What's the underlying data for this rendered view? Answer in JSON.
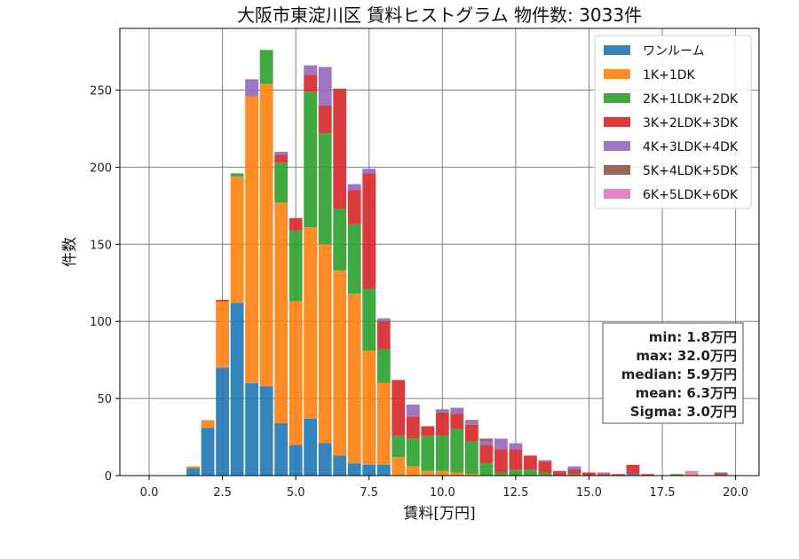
{
  "chart_data": {
    "type": "bar",
    "stacked": true,
    "title": "大阪市東淀川区 賃料ヒストグラム 物件数: 3033件",
    "xlabel": "賃料[万円]",
    "ylabel": "件数",
    "xlim": [
      -1.0,
      20.8
    ],
    "ylim": [
      0,
      290
    ],
    "xticks": [
      0.0,
      2.5,
      5.0,
      7.5,
      10.0,
      12.5,
      15.0,
      17.5,
      20.0
    ],
    "xtick_labels": [
      "0.0",
      "2.5",
      "5.0",
      "7.5",
      "10.0",
      "12.5",
      "15.0",
      "17.5",
      "20.0"
    ],
    "yticks": [
      0,
      50,
      100,
      150,
      200,
      250
    ],
    "ytick_labels": [
      "0",
      "50",
      "100",
      "150",
      "200",
      "250"
    ],
    "grid": true,
    "legend_position": "top-right",
    "bin_width": 0.5,
    "bins": [
      1.5,
      2.0,
      2.5,
      3.0,
      3.5,
      4.0,
      4.5,
      5.0,
      5.5,
      6.0,
      6.5,
      7.0,
      7.5,
      8.0,
      8.5,
      9.0,
      9.5,
      10.0,
      10.5,
      11.0,
      11.5,
      12.0,
      12.5,
      13.0,
      13.5,
      14.0,
      14.5,
      15.0,
      15.5,
      16.0,
      16.5,
      17.0,
      17.5,
      18.0,
      18.5,
      19.0,
      19.5
    ],
    "series": [
      {
        "name": "ワンルーム",
        "color": "#1f77b4",
        "values": [
          5,
          31,
          70,
          112,
          60,
          58,
          34,
          20,
          37,
          21,
          13,
          8,
          7,
          7,
          0,
          0,
          0,
          0,
          0,
          0,
          0,
          0,
          0,
          0,
          0,
          0,
          0,
          0,
          0,
          0,
          1,
          0,
          0,
          0,
          0,
          0,
          0
        ]
      },
      {
        "name": "1K+1DK",
        "color": "#ff7f0e",
        "values": [
          1,
          5,
          43,
          82,
          186,
          196,
          143,
          93,
          124,
          129,
          120,
          110,
          74,
          53,
          12,
          6,
          3,
          3,
          2,
          1,
          0,
          0,
          0,
          0,
          0,
          0,
          0,
          0,
          0,
          0,
          0,
          0,
          0,
          0,
          1,
          0,
          0
        ]
      },
      {
        "name": "2K+1LDK+2DK",
        "color": "#2ca02c",
        "values": [
          0,
          0,
          0,
          2,
          0,
          22,
          26,
          46,
          88,
          72,
          40,
          45,
          40,
          22,
          14,
          18,
          23,
          23,
          28,
          21,
          8,
          2,
          4,
          4,
          2,
          0,
          1,
          0,
          0,
          0,
          0,
          0,
          0,
          1,
          0,
          0,
          0
        ]
      },
      {
        "name": "3K+2LDK+3DK",
        "color": "#d62728",
        "values": [
          0,
          0,
          1,
          0,
          0,
          0,
          5,
          8,
          11,
          18,
          77,
          22,
          75,
          18,
          36,
          14,
          6,
          15,
          10,
          11,
          12,
          15,
          13,
          9,
          7,
          3,
          3,
          2,
          1,
          1,
          6,
          1,
          0,
          0,
          0,
          0,
          1
        ]
      },
      {
        "name": "4K+3LDK+4DK",
        "color": "#9467bd",
        "values": [
          0,
          0,
          0,
          0,
          11,
          0,
          2,
          0,
          6,
          25,
          0,
          4,
          3,
          2,
          0,
          8,
          0,
          2,
          4,
          2,
          2,
          7,
          4,
          0,
          1,
          0,
          2,
          0,
          1,
          0,
          0,
          0,
          0,
          0,
          0,
          0,
          0
        ]
      },
      {
        "name": "5K+4LDK+5DK",
        "color": "#8c564b",
        "values": [
          0,
          0,
          0,
          0,
          0,
          0,
          0,
          0,
          0,
          0,
          1,
          0,
          0,
          0,
          0,
          0,
          0,
          0,
          0,
          1,
          2,
          0,
          0,
          0,
          0,
          0,
          0,
          0,
          0,
          0,
          0,
          0,
          0,
          0,
          0,
          0,
          1
        ]
      },
      {
        "name": "6K+5LDK+6DK",
        "color": "#e377c2",
        "values": [
          0,
          0,
          0,
          0,
          0,
          0,
          0,
          0,
          0,
          0,
          0,
          0,
          0,
          0,
          0,
          0,
          0,
          0,
          0,
          0,
          0,
          0,
          0,
          0,
          0,
          0,
          0,
          0,
          0,
          0,
          0,
          0,
          0,
          0,
          2,
          0,
          0
        ]
      }
    ],
    "stats_box": [
      "min: 1.8万円",
      "max: 32.0万円",
      "median: 5.9万円",
      "mean: 6.3万円",
      "Sigma: 3.0万円"
    ]
  }
}
